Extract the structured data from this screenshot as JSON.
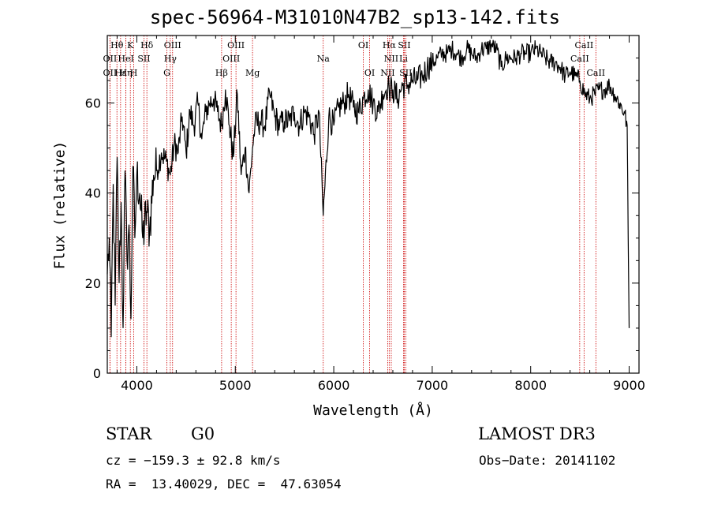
{
  "title": "spec-56964-M31010N47B2_sp13-142.fits",
  "chart_data": {
    "type": "line",
    "title": "spec-56964-M31010N47B2_sp13-142.fits",
    "xlabel": "Wavelength (Å)",
    "ylabel": "Flux (relative)",
    "xlim": [
      3700,
      9100
    ],
    "ylim": [
      0,
      75
    ],
    "xticks": [
      4000,
      5000,
      6000,
      7000,
      8000,
      9000
    ],
    "yticks": [
      0,
      20,
      40,
      60
    ],
    "series": [
      {
        "name": "spectrum",
        "x": [
          3700,
          3720,
          3740,
          3760,
          3780,
          3800,
          3820,
          3840,
          3860,
          3880,
          3900,
          3920,
          3940,
          3960,
          3980,
          4000,
          4030,
          4060,
          4100,
          4130,
          4170,
          4200,
          4250,
          4300,
          4340,
          4380,
          4420,
          4460,
          4500,
          4540,
          4580,
          4620,
          4660,
          4700,
          4740,
          4780,
          4820,
          4861,
          4900,
          4940,
          4980,
          5020,
          5060,
          5100,
          5140,
          5175,
          5200,
          5250,
          5300,
          5350,
          5400,
          5450,
          5500,
          5550,
          5600,
          5650,
          5700,
          5750,
          5800,
          5850,
          5893,
          5950,
          6000,
          6050,
          6100,
          6150,
          6200,
          6250,
          6300,
          6350,
          6400,
          6450,
          6500,
          6550,
          6563,
          6600,
          6650,
          6700,
          6750,
          6800,
          6850,
          6900,
          6950,
          7000,
          7050,
          7100,
          7150,
          7200,
          7250,
          7300,
          7350,
          7400,
          7450,
          7500,
          7550,
          7600,
          7650,
          7700,
          7750,
          7800,
          7850,
          7900,
          7950,
          8000,
          8050,
          8100,
          8150,
          8200,
          8250,
          8300,
          8350,
          8400,
          8450,
          8500,
          8550,
          8600,
          8650,
          8700,
          8750,
          8800,
          8850,
          8900,
          8950,
          8980,
          8990,
          9000
        ],
        "values": [
          22,
          30,
          8,
          42,
          15,
          48,
          20,
          38,
          10,
          45,
          25,
          33,
          12,
          46,
          30,
          44,
          40,
          30,
          36,
          32,
          44,
          45,
          49,
          47,
          44,
          51,
          49,
          57,
          49,
          58,
          55,
          60,
          52,
          58,
          60,
          61,
          58,
          55,
          63,
          55,
          48,
          62,
          44,
          50,
          40,
          50,
          55,
          56,
          55,
          62,
          57,
          55,
          56,
          56,
          58,
          55,
          58,
          57,
          53,
          58,
          35,
          57,
          55,
          59,
          60,
          62,
          59,
          58,
          61,
          63,
          60,
          58,
          62,
          64,
          63,
          63,
          61,
          64,
          64,
          65,
          65,
          66,
          68,
          69,
          70,
          71,
          71,
          72,
          71,
          70,
          72,
          71,
          70,
          72,
          72,
          73,
          72,
          68,
          70,
          70,
          70,
          71,
          71,
          71,
          72,
          71,
          70,
          69,
          69,
          68,
          66,
          67,
          66,
          65,
          62,
          61,
          62,
          63,
          63,
          64,
          62,
          60,
          58,
          55,
          30,
          10
        ]
      }
    ],
    "line_markers": [
      {
        "label": "Hθ",
        "x": 3798,
        "row": 1
      },
      {
        "label": "K",
        "x": 3934,
        "row": 1
      },
      {
        "label": "Hδ",
        "x": 4102,
        "row": 1
      },
      {
        "label": "OIII",
        "x": 4363,
        "row": 1
      },
      {
        "label": "OIII",
        "x": 5007,
        "row": 1
      },
      {
        "label": "OI",
        "x": 6300,
        "row": 1
      },
      {
        "label": "Hα",
        "x": 6563,
        "row": 1
      },
      {
        "label": "SII",
        "x": 6716,
        "row": 1
      },
      {
        "label": "CaII",
        "x": 8542,
        "row": 1
      },
      {
        "label": "OII",
        "x": 3727,
        "row": 2
      },
      {
        "label": "HeI",
        "x": 3889,
        "row": 2
      },
      {
        "label": "SII",
        "x": 4072,
        "row": 2
      },
      {
        "label": "Hγ",
        "x": 4340,
        "row": 2
      },
      {
        "label": "OIII",
        "x": 4959,
        "row": 2
      },
      {
        "label": "Na",
        "x": 5893,
        "row": 2
      },
      {
        "label": "NII",
        "x": 6584,
        "row": 2
      },
      {
        "label": "Li",
        "x": 6708,
        "row": 2
      },
      {
        "label": "CaII",
        "x": 8498,
        "row": 2
      },
      {
        "label": "OII",
        "x": 3727,
        "row": 3
      },
      {
        "label": "Hε",
        "x": 3835,
        "row": 3
      },
      {
        "label": "Hη",
        "x": 3889,
        "row": 3
      },
      {
        "label": "H",
        "x": 3969,
        "row": 3
      },
      {
        "label": "G",
        "x": 4305,
        "row": 3
      },
      {
        "label": "Hβ",
        "x": 4861,
        "row": 3
      },
      {
        "label": "Mg",
        "x": 5175,
        "row": 3
      },
      {
        "label": "OI",
        "x": 6364,
        "row": 3
      },
      {
        "label": "NII",
        "x": 6548,
        "row": 3
      },
      {
        "label": "SII",
        "x": 6731,
        "row": 3
      },
      {
        "label": "CaII",
        "x": 8662,
        "row": 3
      }
    ],
    "colors": {
      "spectrum": "#000000",
      "marker": "#cc0000"
    }
  },
  "info": {
    "object_class": "STAR",
    "subclass": "G0",
    "survey": "LAMOST DR3",
    "cz": "cz = −159.3 ± 92.8 km/s",
    "obs_date": "Obs−Date: 20141102",
    "coords": "RA =  13.40029, DEC =  47.63054"
  }
}
